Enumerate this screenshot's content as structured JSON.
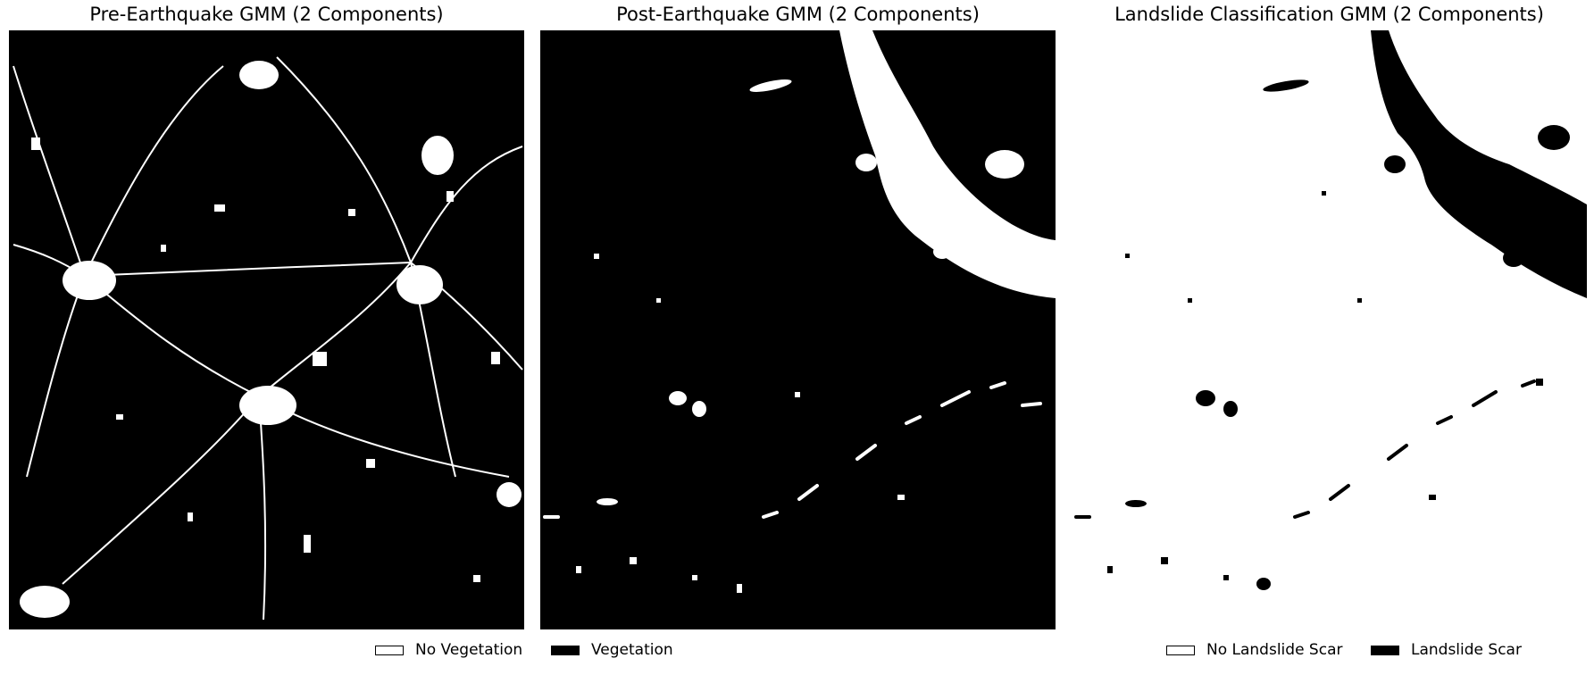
{
  "panels": [
    {
      "title": "Pre-Earthquake GMM (2 Components)"
    },
    {
      "title": "Post-Earthquake GMM (2 Components)"
    },
    {
      "title": "Landslide Classification GMM (2 Components)"
    }
  ],
  "legend_vegetation": [
    {
      "label": "No Vegetation",
      "color": "#ffffff"
    },
    {
      "label": "Vegetation",
      "color": "#000000"
    }
  ],
  "legend_landslide": [
    {
      "label": "No Landslide Scar",
      "color": "#ffffff"
    },
    {
      "label": "Landslide Scar",
      "color": "#000000"
    }
  ]
}
